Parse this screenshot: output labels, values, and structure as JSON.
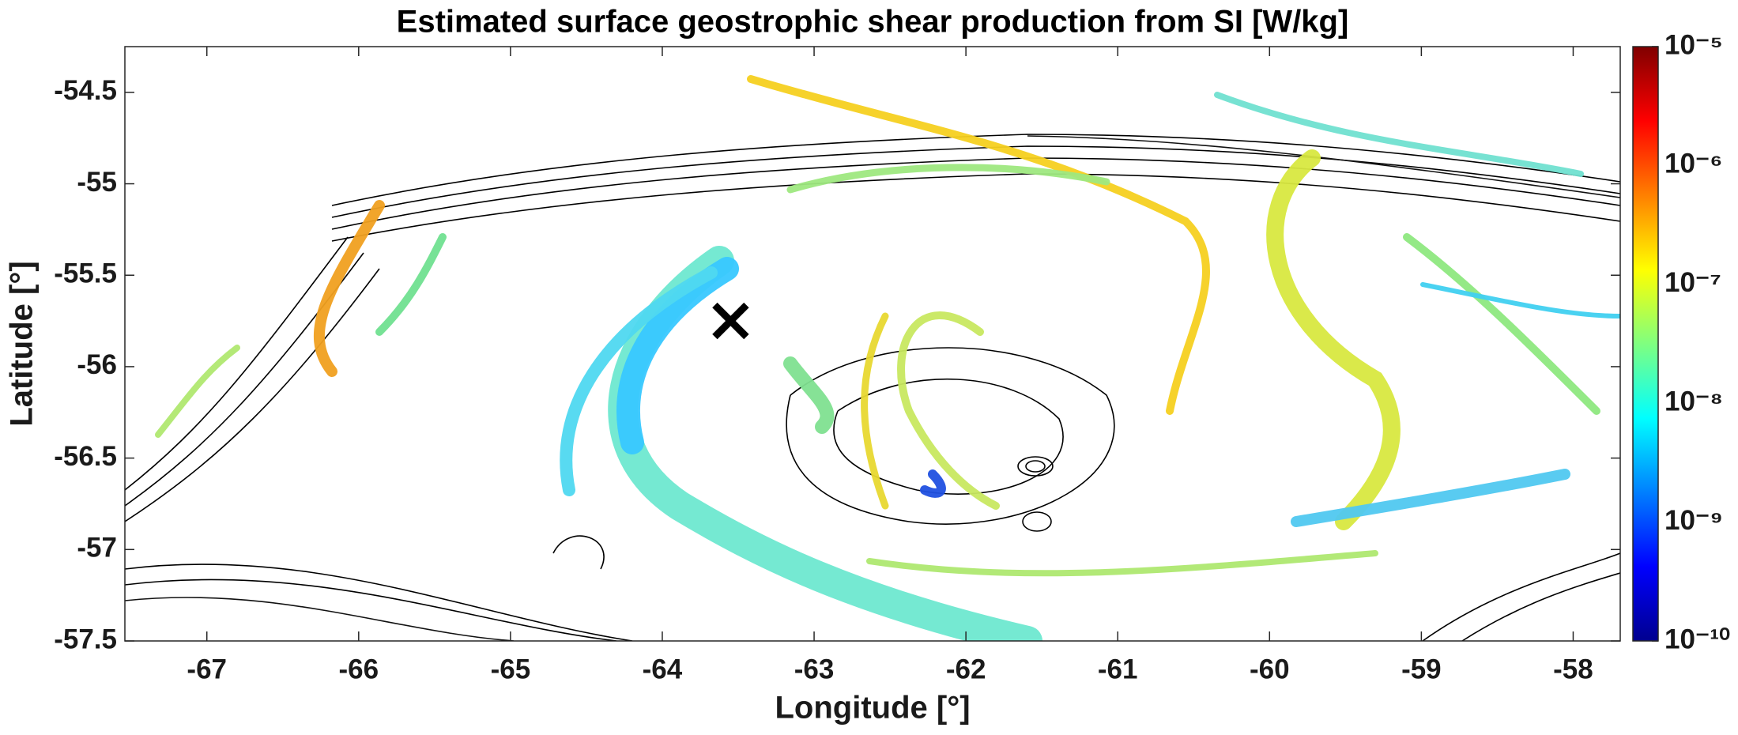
{
  "chart_data": {
    "type": "heatmap",
    "title": "Estimated surface geostrophic shear production from SI [W/kg]",
    "x_label": "Longitude [°]",
    "y_label": "Latitude [°]",
    "xlim": [
      -67.54,
      -57.69
    ],
    "ylim": [
      -57.5,
      -54.25
    ],
    "xticks": [
      -67,
      -66,
      -65,
      -64,
      -63,
      -62,
      -61,
      -60,
      -59,
      -58
    ],
    "yticks": [
      -54.5,
      -55,
      -55.5,
      -56,
      -56.5,
      -57,
      -57.5
    ],
    "colorbar": {
      "log_scale": true,
      "clim": [
        1e-10,
        1e-05
      ],
      "colormap": "jet",
      "ticks": [
        {
          "value": 1e-05,
          "label": "10⁻⁵"
        },
        {
          "value": 1e-06,
          "label": "10⁻⁶"
        },
        {
          "value": 1e-07,
          "label": "10⁻⁷"
        },
        {
          "value": 1e-08,
          "label": "10⁻⁸"
        },
        {
          "value": 1e-09,
          "label": "10⁻⁹"
        },
        {
          "value": 1e-10,
          "label": "10⁻¹⁰"
        }
      ]
    },
    "marker": {
      "x": -63.55,
      "y": -55.75
    }
  }
}
